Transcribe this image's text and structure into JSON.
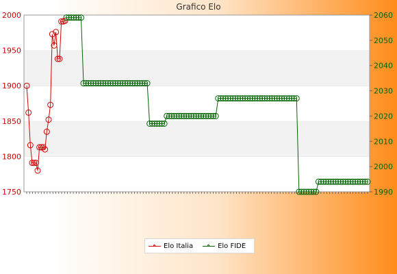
{
  "chart_data": {
    "type": "line",
    "title": "Grafico Elo",
    "grid": "horizontal-bands",
    "legend_position": "bottom-center",
    "y_left": {
      "min": 1750,
      "max": 2000,
      "ticks": [
        1750,
        1800,
        1850,
        1900,
        1950,
        2000
      ]
    },
    "y_right": {
      "min": 1990,
      "max": 2060,
      "ticks": [
        1990,
        2000,
        2010,
        2020,
        2030,
        2040,
        2050,
        2060
      ]
    },
    "series": [
      {
        "name": "Elo Italia",
        "axis": "left",
        "color": "#d40000",
        "values": [
          1900,
          1862,
          1816,
          1791,
          1791,
          1791,
          1780,
          1813,
          1813,
          1813,
          1810,
          1835,
          1852,
          1873,
          1973,
          1957,
          1976,
          1938,
          1938,
          1991,
          1991,
          1992
        ]
      },
      {
        "name": "Elo FIDE",
        "axis": "right",
        "color": "#006400",
        "values": [
          2059,
          2059,
          2059,
          2059,
          2059,
          2059,
          2059,
          2033,
          2033,
          2033,
          2033,
          2033,
          2033,
          2033,
          2033,
          2033,
          2033,
          2033,
          2033,
          2033,
          2033,
          2033,
          2033,
          2033,
          2033,
          2033,
          2033,
          2033,
          2033,
          2033,
          2033,
          2033,
          2033,
          2033,
          2017,
          2017,
          2017,
          2017,
          2017,
          2017,
          2017,
          2020,
          2020,
          2020,
          2020,
          2020,
          2020,
          2020,
          2020,
          2020,
          2020,
          2020,
          2020,
          2020,
          2020,
          2020,
          2020,
          2020,
          2020,
          2020,
          2020,
          2020,
          2027,
          2027,
          2027,
          2027,
          2027,
          2027,
          2027,
          2027,
          2027,
          2027,
          2027,
          2027,
          2027,
          2027,
          2027,
          2027,
          2027,
          2027,
          2027,
          2027,
          2027,
          2027,
          2027,
          2027,
          2027,
          2027,
          2027,
          2027,
          2027,
          2027,
          2027,
          2027,
          2027,
          1990,
          1990,
          1990,
          1990,
          1990,
          1990,
          1990,
          1990,
          1994,
          1994,
          1994,
          1994,
          1994,
          1994,
          1994,
          1994,
          1994,
          1994,
          1994,
          1994,
          1994,
          1994,
          1994,
          1994,
          1994,
          1994,
          1994,
          1994,
          1994
        ]
      }
    ]
  }
}
